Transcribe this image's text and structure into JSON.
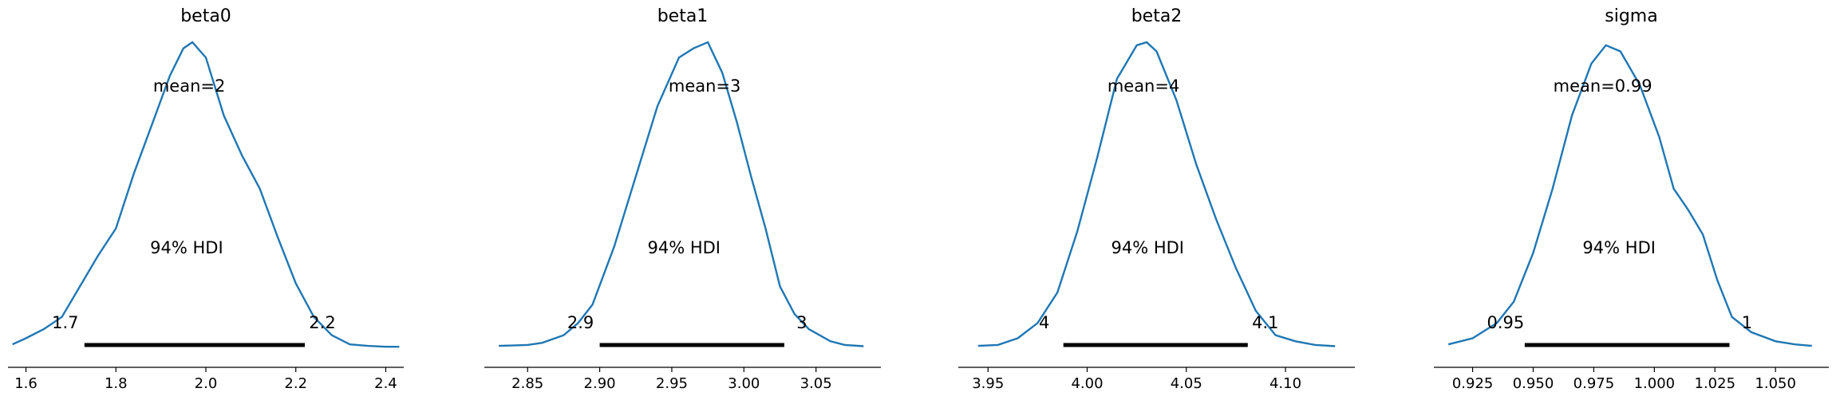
{
  "chart_data": [
    {
      "type": "line",
      "title": "beta0",
      "mean_label": "mean=2",
      "hdi_label": "94% HDI",
      "hdi": [
        1.73,
        2.22
      ],
      "hdi_low_label": "1.7",
      "hdi_high_label": "2.2",
      "xlim": [
        1.56,
        2.44
      ],
      "ticks": [
        1.6,
        1.8,
        2.0,
        2.2,
        2.4
      ],
      "tick_labels": [
        "1.6",
        "1.8",
        "2.0",
        "2.2",
        "2.4"
      ],
      "x": [
        1.57,
        1.6,
        1.64,
        1.68,
        1.72,
        1.76,
        1.8,
        1.84,
        1.88,
        1.92,
        1.95,
        1.97,
        2.0,
        2.04,
        2.08,
        2.12,
        2.16,
        2.2,
        2.24,
        2.28,
        2.32,
        2.36,
        2.4,
        2.43
      ],
      "y": [
        0.01,
        0.03,
        0.06,
        0.1,
        0.2,
        0.3,
        0.39,
        0.57,
        0.73,
        0.89,
        0.98,
        1.0,
        0.95,
        0.76,
        0.63,
        0.52,
        0.36,
        0.21,
        0.1,
        0.04,
        0.01,
        0.005,
        0.002,
        0.002
      ]
    },
    {
      "type": "line",
      "title": "beta1",
      "mean_label": "mean=3",
      "hdi_label": "94% HDI",
      "hdi": [
        2.9,
        3.028
      ],
      "hdi_low_label": "2.9",
      "hdi_high_label": "3",
      "xlim": [
        2.82,
        3.095
      ],
      "ticks": [
        2.85,
        2.9,
        2.95,
        3.0,
        3.05
      ],
      "tick_labels": [
        "2.85",
        "2.90",
        "2.95",
        "3.00",
        "3.05"
      ],
      "x": [
        2.83,
        2.85,
        2.86,
        2.875,
        2.885,
        2.895,
        2.91,
        2.925,
        2.94,
        2.955,
        2.965,
        2.975,
        2.985,
        2.995,
        3.005,
        3.015,
        3.025,
        3.035,
        3.045,
        3.06,
        3.07,
        3.083
      ],
      "y": [
        0.005,
        0.008,
        0.015,
        0.04,
        0.08,
        0.14,
        0.33,
        0.56,
        0.79,
        0.95,
        0.98,
        1.0,
        0.9,
        0.74,
        0.56,
        0.39,
        0.2,
        0.11,
        0.06,
        0.02,
        0.008,
        0.004
      ]
    },
    {
      "type": "line",
      "title": "beta2",
      "mean_label": "mean=4",
      "hdi_label": "94% HDI",
      "hdi": [
        3.988,
        4.081
      ],
      "hdi_low_label": "4",
      "hdi_high_label": "4.1",
      "xlim": [
        3.935,
        4.135
      ],
      "ticks": [
        3.95,
        4.0,
        4.05,
        4.1
      ],
      "tick_labels": [
        "3.95",
        "4.00",
        "4.05",
        "4.10"
      ],
      "x": [
        3.945,
        3.955,
        3.965,
        3.975,
        3.985,
        3.995,
        4.005,
        4.015,
        4.025,
        4.03,
        4.035,
        4.045,
        4.055,
        4.065,
        4.075,
        4.085,
        4.095,
        4.105,
        4.115,
        4.125
      ],
      "y": [
        0.005,
        0.008,
        0.03,
        0.08,
        0.18,
        0.38,
        0.62,
        0.88,
        0.99,
        1.0,
        0.97,
        0.81,
        0.6,
        0.42,
        0.26,
        0.12,
        0.04,
        0.02,
        0.008,
        0.004
      ]
    },
    {
      "type": "line",
      "title": "sigma",
      "mean_label": "mean=0.99",
      "hdi_label": "94% HDI",
      "hdi": [
        0.9465,
        1.031
      ],
      "hdi_low_label": "0.95",
      "hdi_high_label": "1",
      "xlim": [
        0.909,
        1.072
      ],
      "ticks": [
        0.925,
        0.95,
        0.975,
        1.0,
        1.025,
        1.05
      ],
      "tick_labels": [
        "0.925",
        "0.950",
        "0.975",
        "1.000",
        "1.025",
        "1.050"
      ],
      "x": [
        0.915,
        0.925,
        0.935,
        0.942,
        0.95,
        0.958,
        0.966,
        0.974,
        0.98,
        0.986,
        0.994,
        1.002,
        1.008,
        1.014,
        1.02,
        1.026,
        1.032,
        1.04,
        1.05,
        1.058,
        1.065
      ],
      "y": [
        0.01,
        0.03,
        0.08,
        0.15,
        0.31,
        0.52,
        0.76,
        0.93,
        0.99,
        0.97,
        0.86,
        0.69,
        0.52,
        0.45,
        0.37,
        0.22,
        0.1,
        0.05,
        0.02,
        0.01,
        0.005
      ]
    }
  ]
}
